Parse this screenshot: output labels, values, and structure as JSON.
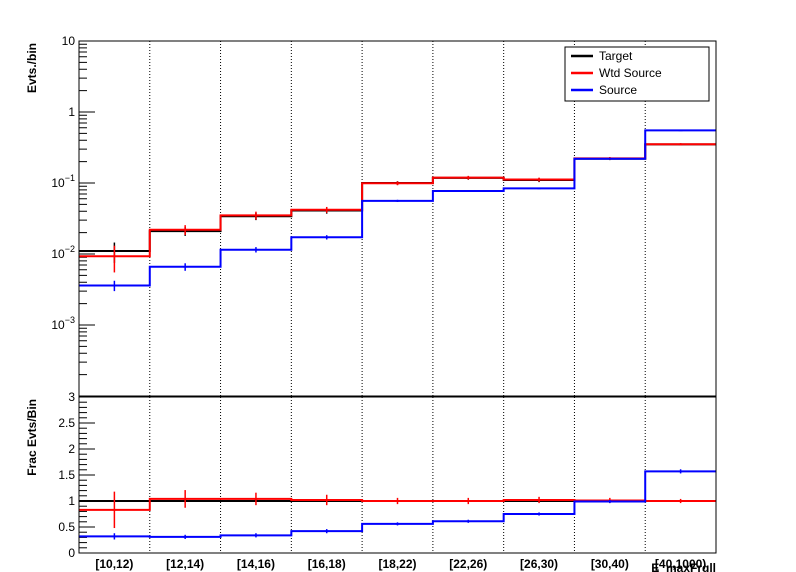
{
  "chart_data": [
    {
      "type": "histogram-step",
      "panel": "top",
      "ylabel": "Evts./bin",
      "yscale": "log",
      "ylim": [
        0.0001,
        10
      ],
      "yticks": [
        {
          "value": 10,
          "label": "10"
        },
        {
          "value": 1,
          "label": "1"
        },
        {
          "value": 0.1,
          "label": "10⁻¹"
        },
        {
          "value": 0.01,
          "label": "10⁻²"
        },
        {
          "value": 0.001,
          "label": "10⁻³"
        }
      ],
      "categories": [
        "[10,12)",
        "[12,14)",
        "[14,16)",
        "[16,18)",
        "[18,22)",
        "[22,26)",
        "[26,30)",
        "[30,40)",
        "[40,1000)"
      ],
      "grid_x": true,
      "legend": {
        "placement": "top-right",
        "entries": [
          "Target",
          "Wtd Source",
          "Source"
        ]
      },
      "series": [
        {
          "name": "Target",
          "color": "#000000",
          "values": [
            0.011,
            0.021,
            0.034,
            0.041,
            0.1,
            0.118,
            0.11,
            0.22,
            0.35
          ],
          "errors": [
            0.0035,
            0.003,
            0.004,
            0.004,
            0.006,
            0.007,
            0.007,
            0.01,
            0.012
          ]
        },
        {
          "name": "Wtd Source",
          "color": "#ff0000",
          "values": [
            0.0093,
            0.022,
            0.035,
            0.042,
            0.099,
            0.119,
            0.112,
            0.222,
            0.351
          ],
          "errors": [
            0.0038,
            0.0035,
            0.0045,
            0.004,
            0.006,
            0.007,
            0.007,
            0.01,
            0.012
          ]
        },
        {
          "name": "Source",
          "color": "#0000ff",
          "values": [
            0.0036,
            0.0066,
            0.0115,
            0.0172,
            0.056,
            0.077,
            0.084,
            0.22,
            0.55
          ],
          "errors": [
            0.0006,
            0.0008,
            0.001,
            0.0012,
            0.002,
            0.002,
            0.002,
            0.004,
            0.006
          ]
        }
      ]
    },
    {
      "type": "histogram-step",
      "panel": "bottom",
      "ylabel": "Frac Evts/Bin",
      "yscale": "linear",
      "ylim": [
        0,
        3
      ],
      "yticks": [
        {
          "value": 0,
          "label": "0"
        },
        {
          "value": 0.5,
          "label": "0.5"
        },
        {
          "value": 1,
          "label": "1"
        },
        {
          "value": 1.5,
          "label": "1.5"
        },
        {
          "value": 2,
          "label": "2"
        },
        {
          "value": 2.5,
          "label": "2.5"
        },
        {
          "value": 3,
          "label": "3"
        }
      ],
      "categories": [
        "[10,12)",
        "[12,14)",
        "[14,16)",
        "[16,18)",
        "[18,22)",
        "[22,26)",
        "[26,30)",
        "[30,40)",
        "[40,1000)"
      ],
      "xlabel": "E_maxFrgll",
      "grid_x": true,
      "series": [
        {
          "name": "Target",
          "color": "#000000",
          "values": [
            1,
            1,
            1,
            1,
            1,
            1,
            1,
            1,
            1
          ],
          "errors": [
            0,
            0,
            0,
            0,
            0,
            0,
            0,
            0,
            0
          ]
        },
        {
          "name": "Wtd Source",
          "color": "#ff0000",
          "values": [
            0.83,
            1.04,
            1.04,
            1.02,
            1.0,
            1.0,
            1.02,
            1.01,
            1.0
          ],
          "errors": [
            0.35,
            0.17,
            0.12,
            0.1,
            0.06,
            0.06,
            0.06,
            0.05,
            0.04
          ]
        },
        {
          "name": "Source",
          "color": "#0000ff",
          "values": [
            0.32,
            0.31,
            0.34,
            0.42,
            0.56,
            0.61,
            0.75,
            0.99,
            1.57
          ],
          "errors": [
            0.06,
            0.04,
            0.04,
            0.04,
            0.03,
            0.03,
            0.03,
            0.03,
            0.04
          ]
        }
      ]
    }
  ]
}
